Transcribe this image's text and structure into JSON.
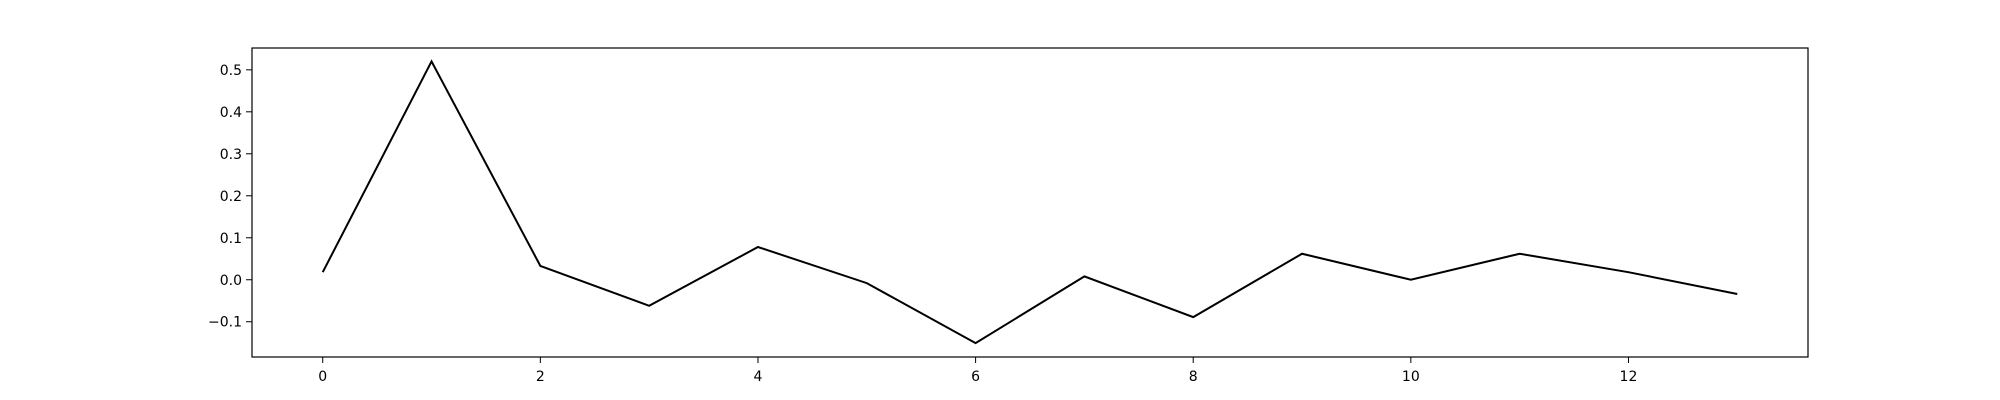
{
  "chart_data": {
    "type": "line",
    "title": "",
    "xlabel": "",
    "ylabel": "",
    "grid": false,
    "legend": "none",
    "x": [
      0,
      1,
      2,
      3,
      4,
      5,
      6,
      7,
      8,
      9,
      10,
      11,
      12,
      13
    ],
    "series": [
      {
        "values": [
          0.018,
          0.52,
          0.033,
          -0.062,
          0.078,
          -0.008,
          -0.151,
          0.008,
          -0.089,
          0.062,
          0.0,
          0.062,
          0.018,
          -0.034
        ],
        "color": "#000000"
      }
    ],
    "xlim": [
      -0.65,
      13.65
    ],
    "ylim": [
      -0.184,
      0.552
    ],
    "xticks": [
      "0",
      "2",
      "4",
      "6",
      "8",
      "10",
      "12"
    ],
    "yticks": [
      "−0.1",
      "0.0",
      "0.1",
      "0.2",
      "0.3",
      "0.4",
      "0.5"
    ]
  }
}
